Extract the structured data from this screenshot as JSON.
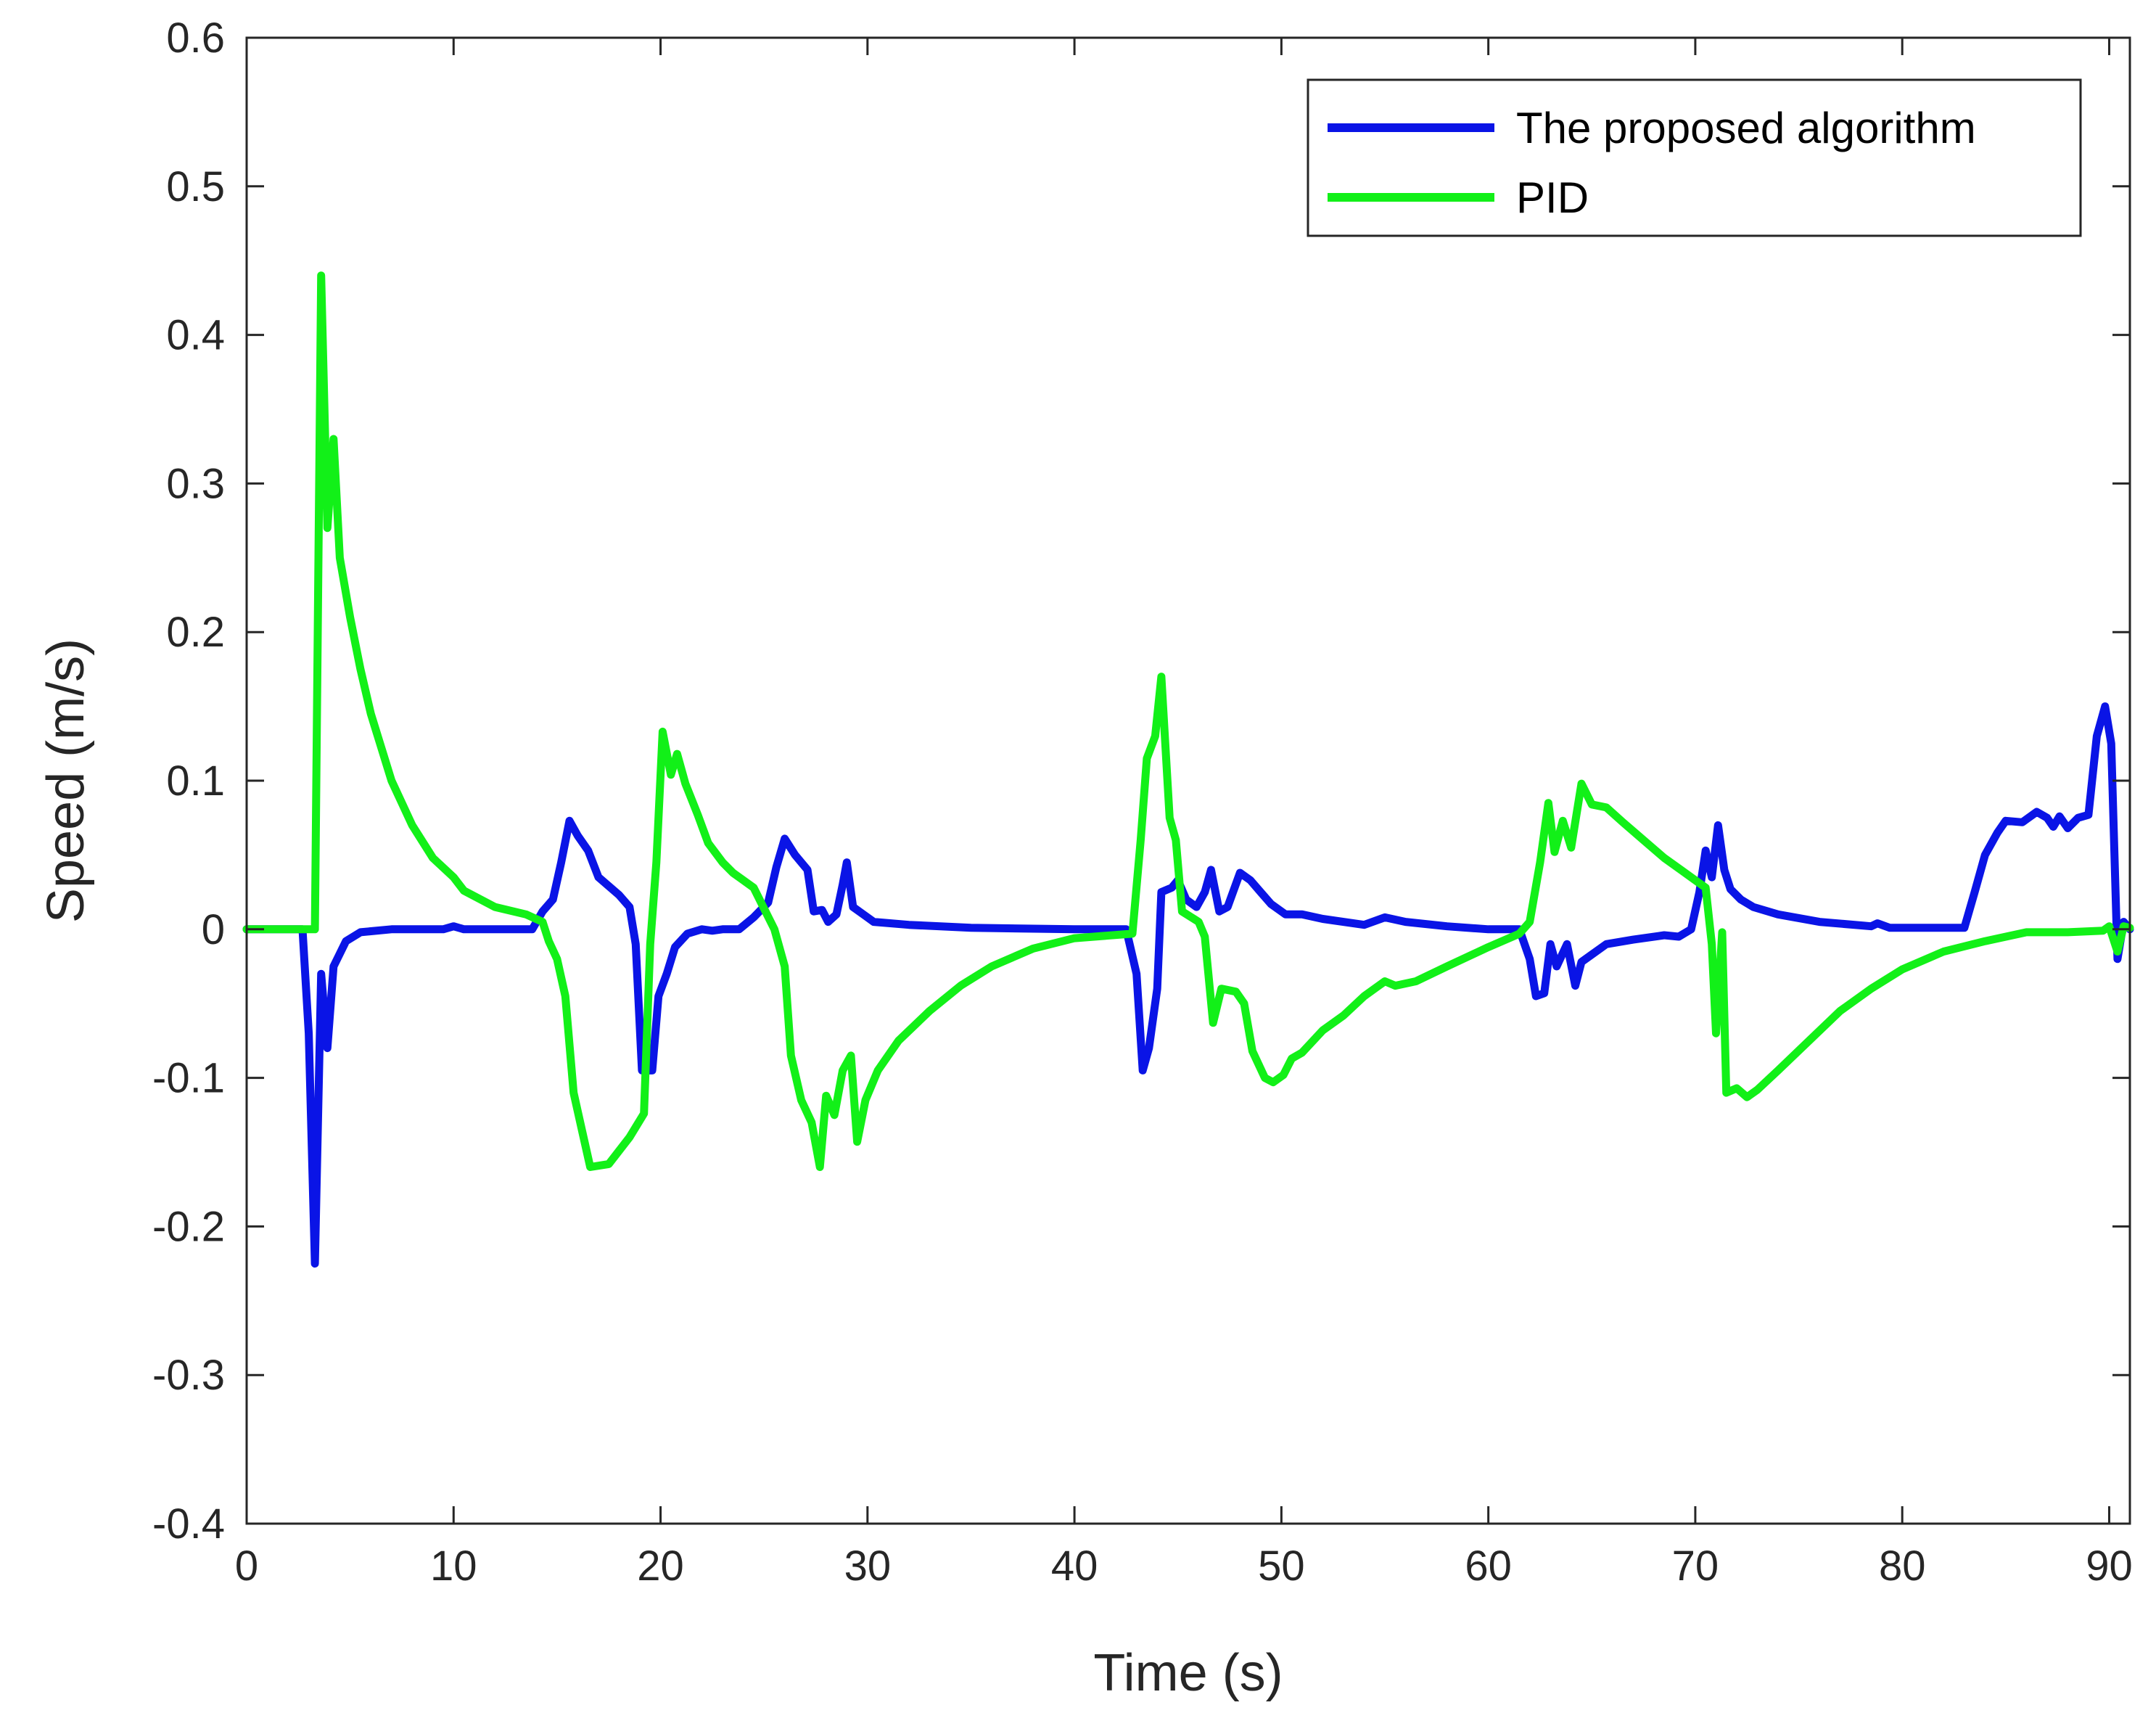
{
  "chart_data": {
    "type": "line",
    "xlabel": "Time (s)",
    "ylabel": "Speed (m/s)",
    "xlim": [
      0,
      91
    ],
    "ylim": [
      -0.4,
      0.6
    ],
    "xticks": [
      0,
      10,
      20,
      30,
      40,
      50,
      60,
      70,
      80,
      90
    ],
    "yticks": [
      -0.4,
      -0.3,
      -0.2,
      -0.1,
      0,
      0.1,
      0.2,
      0.3,
      0.4,
      0.5,
      0.6
    ],
    "xtick_labels": [
      "0",
      "10",
      "20",
      "30",
      "40",
      "50",
      "60",
      "70",
      "80",
      "90"
    ],
    "ytick_labels": [
      "-0.4",
      "-0.3",
      "-0.2",
      "-0.1",
      "0",
      "0.1",
      "0.2",
      "0.3",
      "0.4",
      "0.5",
      "0.6"
    ],
    "grid": false,
    "legend_position": "top-right",
    "series": [
      {
        "name": "The proposed algorithm",
        "color": "#0a14e6",
        "points": [
          [
            0,
            0
          ],
          [
            2.7,
            0
          ],
          [
            3.0,
            -0.07
          ],
          [
            3.3,
            -0.225
          ],
          [
            3.6,
            -0.03
          ],
          [
            3.9,
            -0.08
          ],
          [
            4.2,
            -0.025
          ],
          [
            4.8,
            -0.008
          ],
          [
            5.5,
            -0.002
          ],
          [
            7,
            0
          ],
          [
            9.5,
            0
          ],
          [
            10,
            0.002
          ],
          [
            10.5,
            0
          ],
          [
            13.8,
            0
          ],
          [
            14.3,
            0.012
          ],
          [
            14.8,
            0.02
          ],
          [
            15.2,
            0.045
          ],
          [
            15.6,
            0.073
          ],
          [
            16.0,
            0.063
          ],
          [
            16.5,
            0.053
          ],
          [
            17.0,
            0.035
          ],
          [
            18.0,
            0.023
          ],
          [
            18.5,
            0.015
          ],
          [
            18.8,
            -0.01
          ],
          [
            19.1,
            -0.095
          ],
          [
            19.6,
            -0.095
          ],
          [
            19.9,
            -0.045
          ],
          [
            20.3,
            -0.03
          ],
          [
            20.7,
            -0.012
          ],
          [
            21.3,
            -0.003
          ],
          [
            22.0,
            0.0
          ],
          [
            22.5,
            -0.001
          ],
          [
            23.0,
            0.0
          ],
          [
            23.8,
            0.0
          ],
          [
            24.5,
            0.008
          ],
          [
            25.2,
            0.018
          ],
          [
            25.6,
            0.042
          ],
          [
            26.0,
            0.061
          ],
          [
            26.5,
            0.05
          ],
          [
            27.1,
            0.04
          ],
          [
            27.4,
            0.012
          ],
          [
            27.8,
            0.013
          ],
          [
            28.1,
            0.005
          ],
          [
            28.5,
            0.01
          ],
          [
            28.8,
            0.03
          ],
          [
            29.0,
            0.045
          ],
          [
            29.3,
            0.015
          ],
          [
            29.8,
            0.01
          ],
          [
            30.3,
            0.005
          ],
          [
            32,
            0.003
          ],
          [
            35,
            0.001
          ],
          [
            40,
            0
          ],
          [
            42.5,
            0
          ],
          [
            43.0,
            -0.03
          ],
          [
            43.3,
            -0.095
          ],
          [
            43.6,
            -0.08
          ],
          [
            44.0,
            -0.04
          ],
          [
            44.2,
            0.025
          ],
          [
            44.7,
            0.028
          ],
          [
            45.0,
            0.033
          ],
          [
            45.4,
            0.02
          ],
          [
            45.9,
            0.015
          ],
          [
            46.3,
            0.025
          ],
          [
            46.6,
            0.04
          ],
          [
            47.0,
            0.012
          ],
          [
            47.4,
            0.015
          ],
          [
            48.0,
            0.038
          ],
          [
            48.5,
            0.033
          ],
          [
            49.0,
            0.025
          ],
          [
            49.5,
            0.017
          ],
          [
            50.2,
            0.01
          ],
          [
            51,
            0.01
          ],
          [
            52,
            0.007
          ],
          [
            54,
            0.003
          ],
          [
            55.0,
            0.008
          ],
          [
            56.0,
            0.005
          ],
          [
            58,
            0.002
          ],
          [
            60,
            0.0
          ],
          [
            61.5,
            0.0
          ],
          [
            62.0,
            -0.02
          ],
          [
            62.3,
            -0.045
          ],
          [
            62.7,
            -0.043
          ],
          [
            63.0,
            -0.01
          ],
          [
            63.3,
            -0.025
          ],
          [
            63.8,
            -0.01
          ],
          [
            64.2,
            -0.038
          ],
          [
            64.5,
            -0.022
          ],
          [
            65.0,
            -0.017
          ],
          [
            65.7,
            -0.01
          ],
          [
            67,
            -0.007
          ],
          [
            68.5,
            -0.004
          ],
          [
            69.2,
            -0.005
          ],
          [
            69.8,
            0.0
          ],
          [
            70.2,
            0.025
          ],
          [
            70.5,
            0.053
          ],
          [
            70.8,
            0.035
          ],
          [
            71.1,
            0.07
          ],
          [
            71.4,
            0.04
          ],
          [
            71.7,
            0.027
          ],
          [
            72.2,
            0.02
          ],
          [
            72.8,
            0.015
          ],
          [
            74,
            0.01
          ],
          [
            76,
            0.005
          ],
          [
            78.5,
            0.002
          ],
          [
            78.8,
            0.004
          ],
          [
            79.4,
            0.001
          ],
          [
            83.0,
            0.001
          ],
          [
            83.5,
            0.025
          ],
          [
            84.0,
            0.05
          ],
          [
            84.6,
            0.065
          ],
          [
            85.0,
            0.073
          ],
          [
            85.8,
            0.072
          ],
          [
            86.5,
            0.079
          ],
          [
            87.0,
            0.075
          ],
          [
            87.3,
            0.069
          ],
          [
            87.6,
            0.076
          ],
          [
            88.0,
            0.068
          ],
          [
            88.5,
            0.075
          ],
          [
            89.0,
            0.077
          ],
          [
            89.4,
            0.13
          ],
          [
            89.8,
            0.15
          ],
          [
            90.1,
            0.125
          ],
          [
            90.4,
            -0.02
          ],
          [
            90.7,
            0.005
          ],
          [
            91,
            0.0
          ]
        ]
      },
      {
        "name": "PID",
        "color": "#12f018",
        "points": [
          [
            0,
            0
          ],
          [
            3.3,
            0
          ],
          [
            3.6,
            0.44
          ],
          [
            3.9,
            0.27
          ],
          [
            4.2,
            0.33
          ],
          [
            4.5,
            0.25
          ],
          [
            5.0,
            0.21
          ],
          [
            5.5,
            0.175
          ],
          [
            6.0,
            0.145
          ],
          [
            7.0,
            0.1
          ],
          [
            8.0,
            0.07
          ],
          [
            9.0,
            0.048
          ],
          [
            10.0,
            0.035
          ],
          [
            10.5,
            0.026
          ],
          [
            12.0,
            0.015
          ],
          [
            13.5,
            0.01
          ],
          [
            14.3,
            0.005
          ],
          [
            14.6,
            -0.008
          ],
          [
            15.0,
            -0.02
          ],
          [
            15.4,
            -0.045
          ],
          [
            15.8,
            -0.11
          ],
          [
            16.2,
            -0.135
          ],
          [
            16.6,
            -0.16
          ],
          [
            17.5,
            -0.158
          ],
          [
            18.5,
            -0.14
          ],
          [
            19.2,
            -0.124
          ],
          [
            19.5,
            -0.01
          ],
          [
            19.8,
            0.045
          ],
          [
            20.1,
            0.133
          ],
          [
            20.5,
            0.104
          ],
          [
            20.8,
            0.118
          ],
          [
            21.2,
            0.098
          ],
          [
            21.8,
            0.077
          ],
          [
            22.3,
            0.058
          ],
          [
            23.0,
            0.045
          ],
          [
            23.5,
            0.038
          ],
          [
            24.5,
            0.028
          ],
          [
            25.5,
            0.0
          ],
          [
            26.0,
            -0.025
          ],
          [
            26.3,
            -0.085
          ],
          [
            26.8,
            -0.115
          ],
          [
            27.3,
            -0.13
          ],
          [
            27.7,
            -0.16
          ],
          [
            28.0,
            -0.112
          ],
          [
            28.4,
            -0.125
          ],
          [
            28.8,
            -0.095
          ],
          [
            29.2,
            -0.085
          ],
          [
            29.5,
            -0.143
          ],
          [
            29.9,
            -0.115
          ],
          [
            30.5,
            -0.095
          ],
          [
            31.5,
            -0.075
          ],
          [
            33,
            -0.055
          ],
          [
            34.5,
            -0.038
          ],
          [
            36,
            -0.025
          ],
          [
            38,
            -0.013
          ],
          [
            40,
            -0.006
          ],
          [
            42.8,
            -0.003
          ],
          [
            43.2,
            0.06
          ],
          [
            43.5,
            0.115
          ],
          [
            43.9,
            0.13
          ],
          [
            44.2,
            0.17
          ],
          [
            44.6,
            0.075
          ],
          [
            44.9,
            0.06
          ],
          [
            45.2,
            0.012
          ],
          [
            46.0,
            0.005
          ],
          [
            46.3,
            -0.005
          ],
          [
            46.7,
            -0.063
          ],
          [
            47.1,
            -0.04
          ],
          [
            47.8,
            -0.042
          ],
          [
            48.2,
            -0.05
          ],
          [
            48.6,
            -0.082
          ],
          [
            49.2,
            -0.1
          ],
          [
            49.6,
            -0.103
          ],
          [
            50.1,
            -0.098
          ],
          [
            50.5,
            -0.087
          ],
          [
            51.0,
            -0.083
          ],
          [
            52.0,
            -0.068
          ],
          [
            53.0,
            -0.058
          ],
          [
            54.0,
            -0.045
          ],
          [
            55.0,
            -0.035
          ],
          [
            55.5,
            -0.038
          ],
          [
            56.5,
            -0.035
          ],
          [
            58,
            -0.025
          ],
          [
            60,
            -0.012
          ],
          [
            61.5,
            -0.003
          ],
          [
            62.0,
            0.005
          ],
          [
            62.5,
            0.045
          ],
          [
            62.9,
            0.085
          ],
          [
            63.2,
            0.052
          ],
          [
            63.6,
            0.073
          ],
          [
            64.0,
            0.055
          ],
          [
            64.5,
            0.098
          ],
          [
            65.0,
            0.084
          ],
          [
            65.7,
            0.082
          ],
          [
            66.5,
            0.072
          ],
          [
            67.5,
            0.06
          ],
          [
            68.5,
            0.048
          ],
          [
            69.3,
            0.04
          ],
          [
            69.8,
            0.035
          ],
          [
            70.5,
            0.028
          ],
          [
            70.8,
            -0.01
          ],
          [
            71.0,
            -0.07
          ],
          [
            71.3,
            -0.002
          ],
          [
            71.5,
            -0.11
          ],
          [
            72.0,
            -0.107
          ],
          [
            72.5,
            -0.113
          ],
          [
            73.0,
            -0.108
          ],
          [
            74.0,
            -0.095
          ],
          [
            75.5,
            -0.075
          ],
          [
            77.0,
            -0.055
          ],
          [
            78.5,
            -0.04
          ],
          [
            80,
            -0.027
          ],
          [
            82,
            -0.015
          ],
          [
            84,
            -0.008
          ],
          [
            86,
            -0.002
          ],
          [
            88,
            -0.002
          ],
          [
            89.7,
            -0.001
          ],
          [
            90.0,
            0.002
          ],
          [
            90.4,
            -0.015
          ],
          [
            90.7,
            0.002
          ],
          [
            91,
            0.001
          ]
        ]
      }
    ]
  }
}
